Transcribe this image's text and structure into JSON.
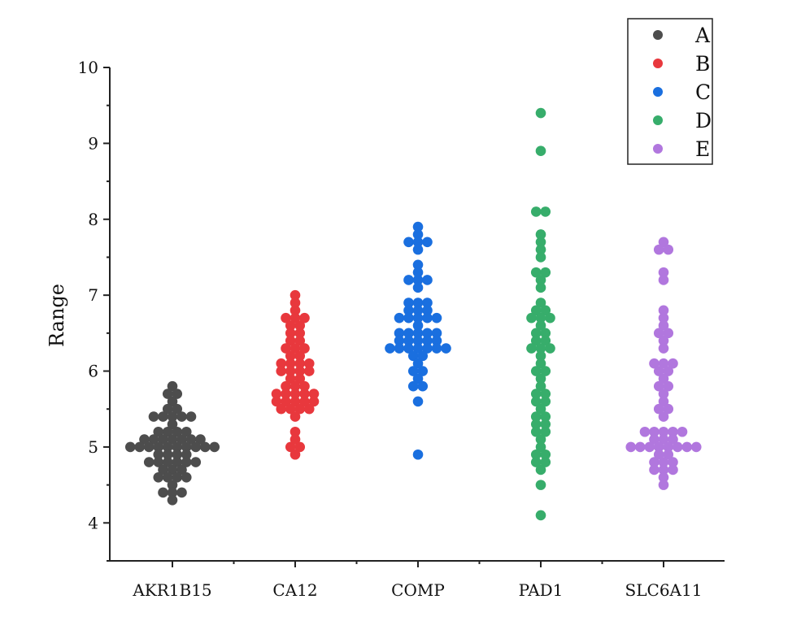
{
  "chart_data": {
    "type": "scatter",
    "subtype": "beeswarm",
    "title": "",
    "xlabel": "",
    "ylabel": "Range",
    "ylim": [
      3.5,
      10
    ],
    "yticks": [
      "4",
      "5",
      "6",
      "7",
      "8",
      "9",
      "10"
    ],
    "grid": false,
    "legend_position": "top-right",
    "categories": [
      "AKR1B15",
      "CA12",
      "COMP",
      "PAD1",
      "SLC6A11"
    ],
    "series": [
      {
        "name": "A",
        "category": "AKR1B15",
        "color": "#4d4d4d",
        "values": [
          5.8,
          5.7,
          5.7,
          5.6,
          5.5,
          5.5,
          5.4,
          5.4,
          5.4,
          5.4,
          5.4,
          5.3,
          5.2,
          5.2,
          5.2,
          5.2,
          5.1,
          5.1,
          5.1,
          5.1,
          5.1,
          5.1,
          5.1,
          5.0,
          5.0,
          5.0,
          5.0,
          5.0,
          5.0,
          5.0,
          5.0,
          5.0,
          5.0,
          4.9,
          4.9,
          4.9,
          4.9,
          4.8,
          4.8,
          4.8,
          4.8,
          4.8,
          4.8,
          4.7,
          4.7,
          4.7,
          4.6,
          4.6,
          4.6,
          4.6,
          4.5,
          4.4,
          4.4,
          4.4,
          4.3
        ]
      },
      {
        "name": "B",
        "category": "CA12",
        "color": "#e8383d",
        "values": [
          7.0,
          6.9,
          6.8,
          6.7,
          6.7,
          6.7,
          6.6,
          6.6,
          6.5,
          6.5,
          6.4,
          6.4,
          6.3,
          6.3,
          6.3,
          6.2,
          6.2,
          6.1,
          6.1,
          6.1,
          6.1,
          6.0,
          6.0,
          6.0,
          6.0,
          5.9,
          5.9,
          5.8,
          5.8,
          5.8,
          5.7,
          5.7,
          5.7,
          5.7,
          5.7,
          5.6,
          5.6,
          5.6,
          5.6,
          5.6,
          5.5,
          5.5,
          5.5,
          5.5,
          5.4,
          5.2,
          5.1,
          5.0,
          5.0,
          4.9
        ]
      },
      {
        "name": "C",
        "category": "COMP",
        "color": "#1a6fdf",
        "values": [
          7.9,
          7.8,
          7.7,
          7.7,
          7.7,
          7.6,
          7.4,
          7.3,
          7.2,
          7.2,
          7.2,
          7.1,
          6.9,
          6.9,
          6.9,
          6.8,
          6.8,
          6.8,
          6.7,
          6.7,
          6.7,
          6.7,
          6.7,
          6.6,
          6.5,
          6.5,
          6.5,
          6.5,
          6.5,
          6.4,
          6.4,
          6.4,
          6.4,
          6.4,
          6.3,
          6.3,
          6.3,
          6.3,
          6.3,
          6.3,
          6.3,
          6.2,
          6.2,
          6.1,
          6.0,
          6.0,
          5.9,
          5.8,
          5.8,
          5.6,
          4.9
        ]
      },
      {
        "name": "D",
        "category": "PAD1",
        "color": "#37ad6b",
        "values": [
          9.4,
          8.9,
          8.1,
          8.1,
          7.8,
          7.7,
          7.6,
          7.5,
          7.3,
          7.3,
          7.2,
          7.1,
          6.9,
          6.8,
          6.8,
          6.7,
          6.7,
          6.7,
          6.6,
          6.5,
          6.5,
          6.4,
          6.4,
          6.3,
          6.3,
          6.3,
          6.2,
          6.1,
          6.0,
          6.0,
          5.9,
          5.8,
          5.7,
          5.7,
          5.6,
          5.6,
          5.5,
          5.4,
          5.4,
          5.3,
          5.3,
          5.2,
          5.2,
          5.1,
          5.0,
          4.9,
          4.9,
          4.8,
          4.8,
          4.7,
          4.5,
          4.1
        ]
      },
      {
        "name": "E",
        "category": "SLC6A11",
        "color": "#b177de",
        "values": [
          7.7,
          7.6,
          7.6,
          7.3,
          7.2,
          6.8,
          6.7,
          6.6,
          6.5,
          6.5,
          6.4,
          6.3,
          6.1,
          6.1,
          6.1,
          6.0,
          6.0,
          5.9,
          5.8,
          5.8,
          5.7,
          5.6,
          5.5,
          5.5,
          5.4,
          5.2,
          5.2,
          5.2,
          5.2,
          5.2,
          5.1,
          5.1,
          5.1,
          5.0,
          5.0,
          5.0,
          5.0,
          5.0,
          5.0,
          5.0,
          5.0,
          4.9,
          4.9,
          4.8,
          4.8,
          4.8,
          4.7,
          4.7,
          4.7,
          4.6,
          4.5
        ]
      }
    ]
  }
}
